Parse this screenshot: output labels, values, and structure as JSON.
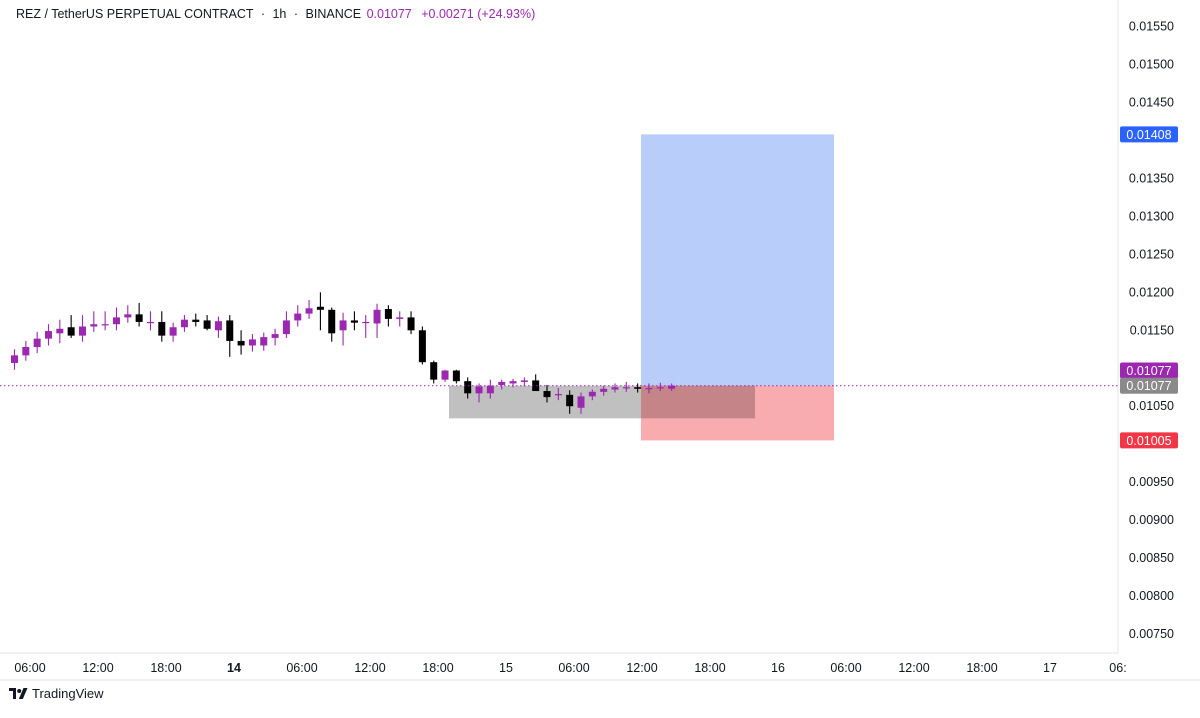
{
  "header": {
    "symbol": "REZ / TetherUS PERPETUAL CONTRACT",
    "sep1": "·",
    "interval": "1h",
    "sep2": "·",
    "exchange": "BINANCE",
    "price": "0.01077",
    "change": "+0.00271 (+24.93%)"
  },
  "footer": {
    "brand": "TradingView",
    "logo_icon": "tradingview-logo-icon"
  },
  "colors": {
    "up": "#9c27b0",
    "down": "#000000",
    "profit_zone": "#b9cdfb",
    "loss_zone": "#f8a3a7",
    "grey_zone": "#bdbdbd",
    "target_badge": "#2962ff",
    "stop_badge": "#f23645",
    "price_badge": "#9c27b0",
    "entry_badge": "#8a8a8a"
  },
  "chart_data": {
    "type": "candlestick",
    "y_ticks": [
      "0.01550",
      "0.01500",
      "0.01450",
      "0.01350",
      "0.01300",
      "0.01250",
      "0.01200",
      "0.01150",
      "0.01050",
      "0.00950",
      "0.00900",
      "0.00850",
      "0.00800",
      "0.00750"
    ],
    "ylim": [
      0.00725,
      0.01585
    ],
    "x_ticks": [
      "06:00",
      "12:00",
      "18:00",
      "14",
      "06:00",
      "12:00",
      "18:00",
      "15",
      "06:00",
      "12:00",
      "18:00",
      "16",
      "06:00",
      "12:00",
      "18:00",
      "17",
      "06:"
    ],
    "x_tick_bold": [
      false,
      false,
      false,
      true,
      false,
      false,
      false,
      false,
      false,
      false,
      false,
      false,
      false,
      false,
      false,
      false,
      false
    ],
    "candles_ohlc": [
      [
        0.01107,
        0.01125,
        0.01098,
        0.01117
      ],
      [
        0.01117,
        0.01136,
        0.0111,
        0.01128
      ],
      [
        0.01128,
        0.01148,
        0.0112,
        0.01139
      ],
      [
        0.01139,
        0.01158,
        0.0113,
        0.01149
      ],
      [
        0.01146,
        0.01164,
        0.01133,
        0.01152
      ],
      [
        0.01154,
        0.0117,
        0.0114,
        0.01143
      ],
      [
        0.01143,
        0.0117,
        0.01135,
        0.01155
      ],
      [
        0.01155,
        0.01175,
        0.01148,
        0.01158
      ],
      [
        0.01158,
        0.01175,
        0.0115,
        0.01158
      ],
      [
        0.01158,
        0.0118,
        0.0115,
        0.01167
      ],
      [
        0.01167,
        0.01183,
        0.0116,
        0.01171
      ],
      [
        0.01171,
        0.01186,
        0.01155,
        0.01161
      ],
      [
        0.01161,
        0.01175,
        0.0115,
        0.01161
      ],
      [
        0.01161,
        0.01175,
        0.01135,
        0.01143
      ],
      [
        0.01143,
        0.0116,
        0.01135,
        0.01154
      ],
      [
        0.01154,
        0.0117,
        0.01148,
        0.01164
      ],
      [
        0.01164,
        0.01172,
        0.01155,
        0.01161
      ],
      [
        0.01163,
        0.0117,
        0.0115,
        0.01152
      ],
      [
        0.0115,
        0.01168,
        0.0114,
        0.01162
      ],
      [
        0.01163,
        0.0117,
        0.01115,
        0.01136
      ],
      [
        0.01136,
        0.0115,
        0.01118,
        0.0113
      ],
      [
        0.0113,
        0.01145,
        0.01122,
        0.01138
      ],
      [
        0.0113,
        0.01147,
        0.01123,
        0.01141
      ],
      [
        0.0114,
        0.01152,
        0.0113,
        0.01145
      ],
      [
        0.01145,
        0.01175,
        0.0114,
        0.01163
      ],
      [
        0.01163,
        0.01183,
        0.01155,
        0.01172
      ],
      [
        0.01172,
        0.0119,
        0.01165,
        0.01179
      ],
      [
        0.01181,
        0.012,
        0.0115,
        0.01177
      ],
      [
        0.01177,
        0.0118,
        0.01135,
        0.01146
      ],
      [
        0.0115,
        0.01173,
        0.0113,
        0.01163
      ],
      [
        0.01163,
        0.01175,
        0.0115,
        0.0116
      ],
      [
        0.0116,
        0.0117,
        0.0114,
        0.01161
      ],
      [
        0.01159,
        0.01185,
        0.0114,
        0.01177
      ],
      [
        0.01178,
        0.01183,
        0.01155,
        0.01165
      ],
      [
        0.01165,
        0.01175,
        0.01155,
        0.01167
      ],
      [
        0.01167,
        0.01175,
        0.01145,
        0.0115
      ],
      [
        0.0115,
        0.01155,
        0.01105,
        0.01108
      ],
      [
        0.01108,
        0.0111,
        0.0108,
        0.01085
      ],
      [
        0.01085,
        0.01098,
        0.01082,
        0.01097
      ],
      [
        0.01097,
        0.01098,
        0.0108,
        0.01083
      ],
      [
        0.01083,
        0.01088,
        0.0106,
        0.01067
      ],
      [
        0.01067,
        0.0108,
        0.01055,
        0.01076
      ],
      [
        0.01067,
        0.01085,
        0.0106,
        0.01077
      ],
      [
        0.01078,
        0.01085,
        0.01072,
        0.01082
      ],
      [
        0.0108,
        0.01086,
        0.01075,
        0.01083
      ],
      [
        0.01082,
        0.01088,
        0.01076,
        0.01084
      ],
      [
        0.01084,
        0.01092,
        0.01074,
        0.0107
      ],
      [
        0.0107,
        0.01078,
        0.01055,
        0.01062
      ],
      [
        0.01066,
        0.01074,
        0.01058,
        0.01066
      ],
      [
        0.01065,
        0.01071,
        0.0104,
        0.0105
      ],
      [
        0.01048,
        0.01068,
        0.0104,
        0.01063
      ],
      [
        0.01063,
        0.01072,
        0.01058,
        0.01069
      ],
      [
        0.01069,
        0.01077,
        0.01064,
        0.01073
      ],
      [
        0.01072,
        0.0108,
        0.01068,
        0.01075
      ],
      [
        0.01075,
        0.01082,
        0.01069,
        0.01075
      ],
      [
        0.01075,
        0.0108,
        0.01068,
        0.01073
      ],
      [
        0.01073,
        0.0108,
        0.01067,
        0.01074
      ],
      [
        0.01074,
        0.01081,
        0.0107,
        0.01075
      ],
      [
        0.01073,
        0.0108,
        0.0107,
        0.01077
      ]
    ],
    "last_price": 0.01077,
    "position": {
      "entry": 0.01077,
      "target": 0.01408,
      "stop": 0.01005,
      "target_label": "0.01408",
      "stop_label": "0.01005",
      "entry_label": "0.01077",
      "price_label": "0.01077",
      "start_time": "12:00 (15)",
      "end_time": "06:00 (16)"
    },
    "consolidation_zone": {
      "top": 0.01077,
      "bottom": 0.01034,
      "start_time": "19:00 (14)"
    }
  }
}
